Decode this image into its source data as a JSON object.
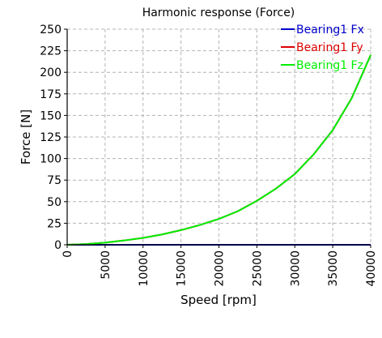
{
  "chart_data": {
    "type": "line",
    "title": "Harmonic response (Force)",
    "xlabel": "Speed [rpm]",
    "ylabel": "Force [N]",
    "xlim": [
      0,
      40000
    ],
    "ylim": [
      0,
      250
    ],
    "x_ticks": [
      "0",
      "5000",
      "10000",
      "15000",
      "20000",
      "25000",
      "30000",
      "35000",
      "40000"
    ],
    "y_ticks": [
      "0",
      "25",
      "50",
      "75",
      "100",
      "125",
      "150",
      "175",
      "200",
      "225",
      "250"
    ],
    "grid": true,
    "legend_position": "top-right",
    "x": [
      0,
      2500,
      5000,
      7500,
      10000,
      12500,
      15000,
      17500,
      20000,
      22500,
      25000,
      27500,
      30000,
      32500,
      35000,
      37500,
      40000
    ],
    "series": [
      {
        "name": "Bearing1 Fx",
        "color": "#0000cc",
        "values": [
          0,
          0,
          0,
          0,
          0,
          0,
          0,
          0,
          0,
          0,
          0,
          0,
          0,
          0,
          0,
          0,
          0
        ]
      },
      {
        "name": "Bearing1 Fy",
        "color": "#dd0000",
        "values": [
          0,
          0.8,
          2.5,
          5.0,
          8.0,
          12.0,
          17.0,
          23.0,
          30.0,
          39.0,
          51.0,
          65.0,
          82.0,
          105.0,
          133.0,
          170.0,
          220.0
        ]
      },
      {
        "name": "Bearing1 Fz",
        "color": "#00ee00",
        "values": [
          0,
          0.8,
          2.5,
          5.0,
          8.0,
          12.0,
          17.0,
          23.0,
          30.0,
          39.0,
          51.0,
          65.0,
          82.0,
          105.0,
          133.0,
          170.0,
          220.0
        ]
      }
    ]
  }
}
